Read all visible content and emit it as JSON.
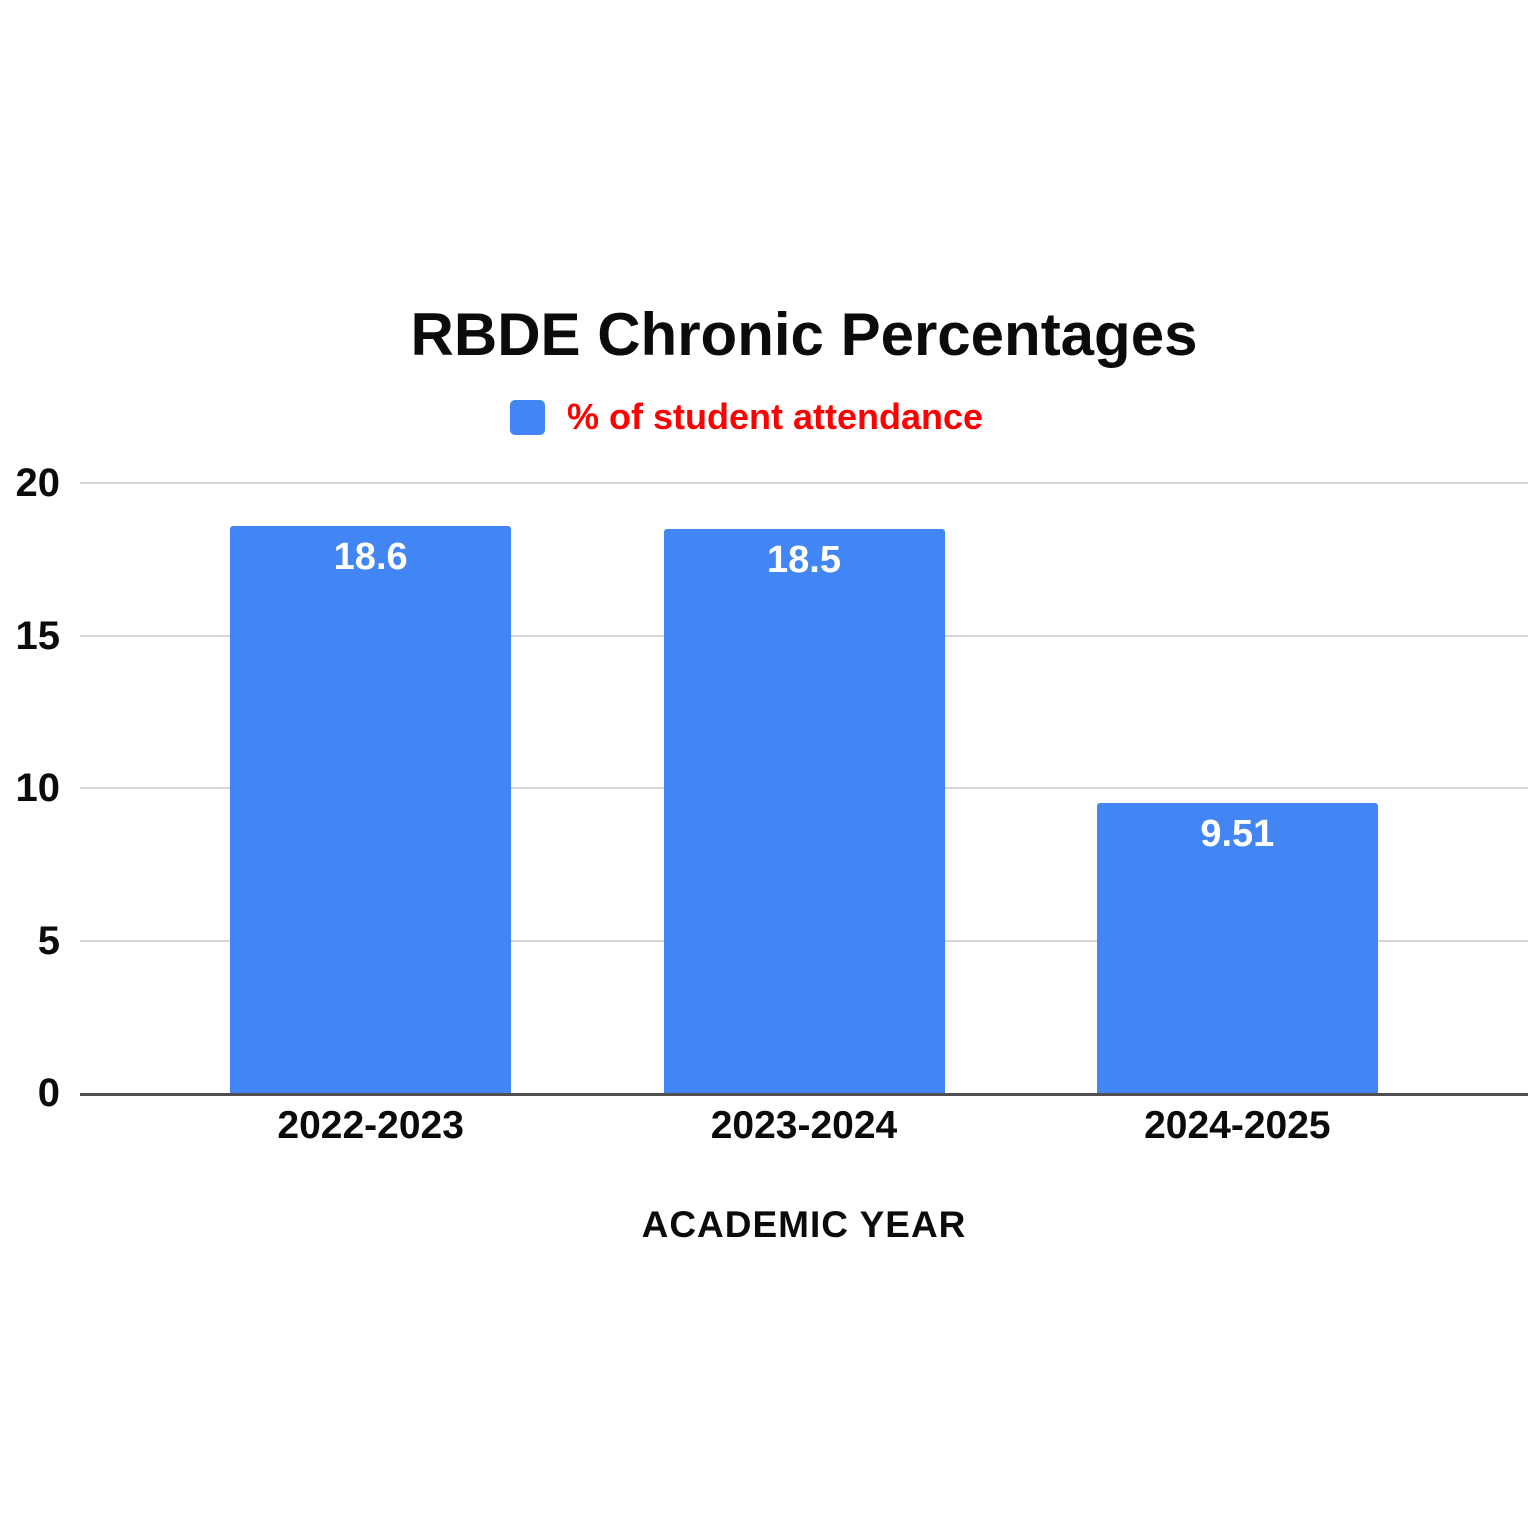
{
  "chart": {
    "title": "RBDE Chronic Percentages",
    "legend_label": "% of student attendance",
    "axis_title": "ACADEMIC YEAR"
  },
  "colors": {
    "bar": "#4285f4",
    "legend_text": "#ff0000",
    "gridline": "#d6d6d6",
    "axis_line": "#4f4f4f",
    "text": "#0b0b0b",
    "bar_value_label": "#ffffff"
  },
  "chart_data": {
    "type": "bar",
    "title": "RBDE Chronic Percentages",
    "legend": [
      "% of student attendance"
    ],
    "legend_position": "top",
    "categories": [
      "2022-2023",
      "2023-2024",
      "2024-2025"
    ],
    "values": [
      18.6,
      18.5,
      9.51
    ],
    "value_labels": [
      "18.6",
      "18.5",
      "9.51"
    ],
    "xlabel": "ACADEMIC YEAR",
    "ylabel": "",
    "ylim": [
      0,
      20
    ],
    "yticks": [
      0,
      5,
      10,
      15,
      20
    ],
    "grid": true
  }
}
